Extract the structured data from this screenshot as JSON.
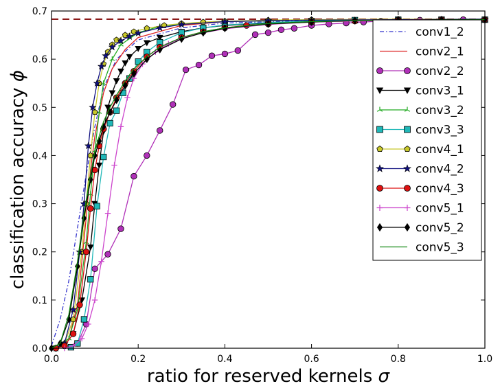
{
  "chart_data": {
    "type": "line",
    "title": "",
    "xlabel": "ratio for reserved kernels",
    "xlabel_symbol": "σ",
    "ylabel": "classification accuracy",
    "ylabel_symbol": "ϕ",
    "xlim": [
      0.0,
      1.0
    ],
    "ylim": [
      0.0,
      0.7
    ],
    "xticks": [
      "0.0",
      "0.2",
      "0.4",
      "0.6",
      "0.8",
      "1.0"
    ],
    "yticks": [
      "0.0",
      "0.1",
      "0.2",
      "0.3",
      "0.4",
      "0.5",
      "0.6",
      "0.7"
    ],
    "grid": false,
    "legend_position": "top-right",
    "baseline": {
      "y": 0.683,
      "color": "#8b1a1a",
      "style": "dashed"
    },
    "series": [
      {
        "name": "conv1_2",
        "color": "#3333cc",
        "marker": "none",
        "dash": "dashdot",
        "points": [
          [
            0.0,
            0.005
          ],
          [
            0.02,
            0.06
          ],
          [
            0.04,
            0.14
          ],
          [
            0.06,
            0.25
          ],
          [
            0.08,
            0.36
          ],
          [
            0.1,
            0.46
          ],
          [
            0.12,
            0.54
          ],
          [
            0.15,
            0.6
          ],
          [
            0.2,
            0.64
          ],
          [
            0.3,
            0.665
          ],
          [
            0.4,
            0.675
          ],
          [
            0.6,
            0.68
          ],
          [
            0.8,
            0.682
          ],
          [
            1.0,
            0.683
          ]
        ]
      },
      {
        "name": "conv2_1",
        "color": "#dd2222",
        "marker": "none",
        "dash": "solid",
        "points": [
          [
            0.0,
            0.0
          ],
          [
            0.02,
            0.005
          ],
          [
            0.04,
            0.02
          ],
          [
            0.06,
            0.09
          ],
          [
            0.08,
            0.27
          ],
          [
            0.09,
            0.37
          ],
          [
            0.1,
            0.44
          ],
          [
            0.12,
            0.53
          ],
          [
            0.14,
            0.58
          ],
          [
            0.17,
            0.62
          ],
          [
            0.2,
            0.645
          ],
          [
            0.3,
            0.67
          ],
          [
            0.4,
            0.678
          ],
          [
            0.6,
            0.681
          ],
          [
            1.0,
            0.683
          ]
        ]
      },
      {
        "name": "conv2_2",
        "color": "#b030b8",
        "marker": "circle",
        "dash": "solid",
        "points": [
          [
            0.06,
            0.01
          ],
          [
            0.08,
            0.05
          ],
          [
            0.1,
            0.165
          ],
          [
            0.13,
            0.195
          ],
          [
            0.16,
            0.248
          ],
          [
            0.19,
            0.357
          ],
          [
            0.22,
            0.4
          ],
          [
            0.25,
            0.452
          ],
          [
            0.28,
            0.506
          ],
          [
            0.31,
            0.578
          ],
          [
            0.34,
            0.588
          ],
          [
            0.37,
            0.607
          ],
          [
            0.4,
            0.611
          ],
          [
            0.43,
            0.618
          ],
          [
            0.47,
            0.651
          ],
          [
            0.5,
            0.655
          ],
          [
            0.53,
            0.661
          ],
          [
            0.56,
            0.664
          ],
          [
            0.6,
            0.67
          ],
          [
            0.64,
            0.673
          ],
          [
            0.68,
            0.675
          ],
          [
            0.72,
            0.677
          ],
          [
            0.76,
            0.679
          ],
          [
            0.8,
            0.68
          ],
          [
            0.85,
            0.681
          ],
          [
            0.9,
            0.682
          ],
          [
            0.95,
            0.682
          ],
          [
            1.0,
            0.682
          ]
        ]
      },
      {
        "name": "conv3_1",
        "color": "#000000",
        "marker": "triangle-down",
        "dash": "solid",
        "points": [
          [
            0.01,
            0.0
          ],
          [
            0.03,
            0.005
          ],
          [
            0.05,
            0.03
          ],
          [
            0.07,
            0.1
          ],
          [
            0.09,
            0.21
          ],
          [
            0.1,
            0.3
          ],
          [
            0.11,
            0.38
          ],
          [
            0.12,
            0.45
          ],
          [
            0.13,
            0.5
          ],
          [
            0.14,
            0.53
          ],
          [
            0.15,
            0.555
          ],
          [
            0.16,
            0.575
          ],
          [
            0.17,
            0.592
          ],
          [
            0.18,
            0.605
          ],
          [
            0.2,
            0.622
          ],
          [
            0.22,
            0.634
          ],
          [
            0.25,
            0.645
          ],
          [
            0.3,
            0.657
          ],
          [
            0.35,
            0.665
          ],
          [
            0.4,
            0.67
          ],
          [
            0.5,
            0.675
          ],
          [
            0.6,
            0.678
          ],
          [
            0.7,
            0.68
          ],
          [
            0.8,
            0.681
          ],
          [
            0.9,
            0.682
          ],
          [
            1.0,
            0.682
          ]
        ]
      },
      {
        "name": "conv3_2",
        "color": "#22aa22",
        "marker": "tri",
        "dash": "solid",
        "points": [
          [
            0.0,
            0.0
          ],
          [
            0.02,
            0.005
          ],
          [
            0.04,
            0.02
          ],
          [
            0.06,
            0.08
          ],
          [
            0.08,
            0.22
          ],
          [
            0.09,
            0.32
          ],
          [
            0.1,
            0.41
          ],
          [
            0.11,
            0.49
          ],
          [
            0.12,
            0.55
          ],
          [
            0.14,
            0.6
          ],
          [
            0.16,
            0.63
          ],
          [
            0.2,
            0.655
          ],
          [
            0.25,
            0.668
          ],
          [
            0.3,
            0.673
          ],
          [
            0.4,
            0.678
          ],
          [
            0.6,
            0.681
          ],
          [
            1.0,
            0.683
          ]
        ]
      },
      {
        "name": "conv3_3",
        "color": "#20b8b8",
        "marker": "square",
        "dash": "solid",
        "points": [
          [
            0.045,
            0.002
          ],
          [
            0.06,
            0.01
          ],
          [
            0.075,
            0.06
          ],
          [
            0.09,
            0.143
          ],
          [
            0.105,
            0.295
          ],
          [
            0.12,
            0.397
          ],
          [
            0.135,
            0.467
          ],
          [
            0.15,
            0.493
          ],
          [
            0.165,
            0.53
          ],
          [
            0.18,
            0.56
          ],
          [
            0.2,
            0.595
          ],
          [
            0.22,
            0.615
          ],
          [
            0.25,
            0.635
          ],
          [
            0.3,
            0.655
          ],
          [
            0.35,
            0.665
          ],
          [
            0.4,
            0.671
          ],
          [
            0.5,
            0.676
          ],
          [
            0.6,
            0.679
          ],
          [
            0.7,
            0.681
          ],
          [
            0.8,
            0.682
          ],
          [
            0.9,
            0.682
          ],
          [
            1.0,
            0.682
          ]
        ]
      },
      {
        "name": "conv4_1",
        "color": "#c8c82a",
        "marker": "pentagon",
        "dash": "solid",
        "points": [
          [
            0.01,
            0.0
          ],
          [
            0.03,
            0.01
          ],
          [
            0.05,
            0.06
          ],
          [
            0.07,
            0.2
          ],
          [
            0.08,
            0.3
          ],
          [
            0.09,
            0.4
          ],
          [
            0.1,
            0.49
          ],
          [
            0.11,
            0.55
          ],
          [
            0.12,
            0.59
          ],
          [
            0.13,
            0.615
          ],
          [
            0.14,
            0.63
          ],
          [
            0.15,
            0.64
          ],
          [
            0.17,
            0.65
          ],
          [
            0.19,
            0.657
          ],
          [
            0.22,
            0.664
          ],
          [
            0.26,
            0.67
          ],
          [
            0.3,
            0.674
          ],
          [
            0.35,
            0.677
          ],
          [
            0.4,
            0.679
          ],
          [
            0.5,
            0.681
          ],
          [
            0.6,
            0.682
          ],
          [
            0.8,
            0.683
          ],
          [
            1.0,
            0.683
          ]
        ]
      },
      {
        "name": "conv4_2",
        "color": "#101080",
        "marker": "star",
        "dash": "solid",
        "points": [
          [
            0.01,
            0.0
          ],
          [
            0.03,
            0.01
          ],
          [
            0.05,
            0.08
          ],
          [
            0.065,
            0.2
          ],
          [
            0.075,
            0.3
          ],
          [
            0.085,
            0.42
          ],
          [
            0.095,
            0.5
          ],
          [
            0.105,
            0.55
          ],
          [
            0.115,
            0.585
          ],
          [
            0.125,
            0.607
          ],
          [
            0.14,
            0.625
          ],
          [
            0.16,
            0.638
          ],
          [
            0.18,
            0.647
          ],
          [
            0.2,
            0.654
          ],
          [
            0.25,
            0.665
          ],
          [
            0.3,
            0.672
          ],
          [
            0.4,
            0.678
          ],
          [
            0.5,
            0.68
          ],
          [
            0.6,
            0.681
          ],
          [
            0.8,
            0.682
          ],
          [
            1.0,
            0.683
          ]
        ]
      },
      {
        "name": "conv4_3",
        "color": "#dd1111",
        "marker": "circle",
        "dash": "solid",
        "points": [
          [
            0.01,
            0.0
          ],
          [
            0.03,
            0.005
          ],
          [
            0.05,
            0.03
          ],
          [
            0.065,
            0.09
          ],
          [
            0.08,
            0.2
          ],
          [
            0.09,
            0.29
          ],
          [
            0.1,
            0.37
          ],
          [
            0.11,
            0.42
          ],
          [
            0.12,
            0.455
          ],
          [
            0.135,
            0.49
          ],
          [
            0.15,
            0.52
          ],
          [
            0.17,
            0.55
          ],
          [
            0.19,
            0.575
          ],
          [
            0.22,
            0.605
          ],
          [
            0.25,
            0.625
          ],
          [
            0.3,
            0.645
          ],
          [
            0.35,
            0.657
          ],
          [
            0.4,
            0.665
          ],
          [
            0.45,
            0.67
          ],
          [
            0.5,
            0.673
          ],
          [
            0.6,
            0.677
          ],
          [
            0.7,
            0.679
          ],
          [
            0.8,
            0.681
          ],
          [
            0.9,
            0.682
          ],
          [
            1.0,
            0.682
          ]
        ]
      },
      {
        "name": "conv5_1",
        "color": "#cc44cc",
        "marker": "plus",
        "dash": "solid",
        "points": [
          [
            0.03,
            0.0
          ],
          [
            0.05,
            0.005
          ],
          [
            0.07,
            0.02
          ],
          [
            0.085,
            0.05
          ],
          [
            0.1,
            0.1
          ],
          [
            0.115,
            0.18
          ],
          [
            0.13,
            0.28
          ],
          [
            0.145,
            0.38
          ],
          [
            0.16,
            0.46
          ],
          [
            0.175,
            0.52
          ],
          [
            0.19,
            0.56
          ],
          [
            0.21,
            0.59
          ],
          [
            0.24,
            0.615
          ],
          [
            0.27,
            0.632
          ],
          [
            0.3,
            0.643
          ],
          [
            0.35,
            0.655
          ],
          [
            0.4,
            0.663
          ],
          [
            0.5,
            0.672
          ],
          [
            0.6,
            0.677
          ],
          [
            0.7,
            0.679
          ],
          [
            0.8,
            0.681
          ],
          [
            0.9,
            0.682
          ],
          [
            1.0,
            0.682
          ]
        ]
      },
      {
        "name": "conv5_2",
        "color": "#000000",
        "marker": "diamond",
        "dash": "solid",
        "points": [
          [
            0.0,
            0.0
          ],
          [
            0.02,
            0.01
          ],
          [
            0.04,
            0.06
          ],
          [
            0.06,
            0.17
          ],
          [
            0.075,
            0.27
          ],
          [
            0.09,
            0.35
          ],
          [
            0.1,
            0.4
          ],
          [
            0.11,
            0.43
          ],
          [
            0.12,
            0.46
          ],
          [
            0.135,
            0.49
          ],
          [
            0.15,
            0.515
          ],
          [
            0.17,
            0.545
          ],
          [
            0.19,
            0.57
          ],
          [
            0.22,
            0.6
          ],
          [
            0.25,
            0.62
          ],
          [
            0.3,
            0.642
          ],
          [
            0.35,
            0.655
          ],
          [
            0.4,
            0.664
          ],
          [
            0.5,
            0.673
          ],
          [
            0.6,
            0.677
          ],
          [
            0.7,
            0.68
          ],
          [
            0.8,
            0.681
          ],
          [
            0.9,
            0.682
          ],
          [
            1.0,
            0.682
          ]
        ]
      },
      {
        "name": "conv5_3",
        "color": "#118811",
        "marker": "none",
        "dash": "solid",
        "points": [
          [
            0.0,
            0.0
          ],
          [
            0.02,
            0.01
          ],
          [
            0.04,
            0.07
          ],
          [
            0.06,
            0.18
          ],
          [
            0.075,
            0.28
          ],
          [
            0.09,
            0.36
          ],
          [
            0.1,
            0.41
          ],
          [
            0.11,
            0.44
          ],
          [
            0.12,
            0.47
          ],
          [
            0.135,
            0.5
          ],
          [
            0.15,
            0.525
          ],
          [
            0.17,
            0.555
          ],
          [
            0.19,
            0.58
          ],
          [
            0.22,
            0.605
          ],
          [
            0.25,
            0.625
          ],
          [
            0.3,
            0.645
          ],
          [
            0.35,
            0.657
          ],
          [
            0.4,
            0.665
          ],
          [
            0.5,
            0.674
          ],
          [
            0.6,
            0.678
          ],
          [
            0.7,
            0.68
          ],
          [
            0.8,
            0.681
          ],
          [
            1.0,
            0.682
          ]
        ]
      }
    ]
  }
}
